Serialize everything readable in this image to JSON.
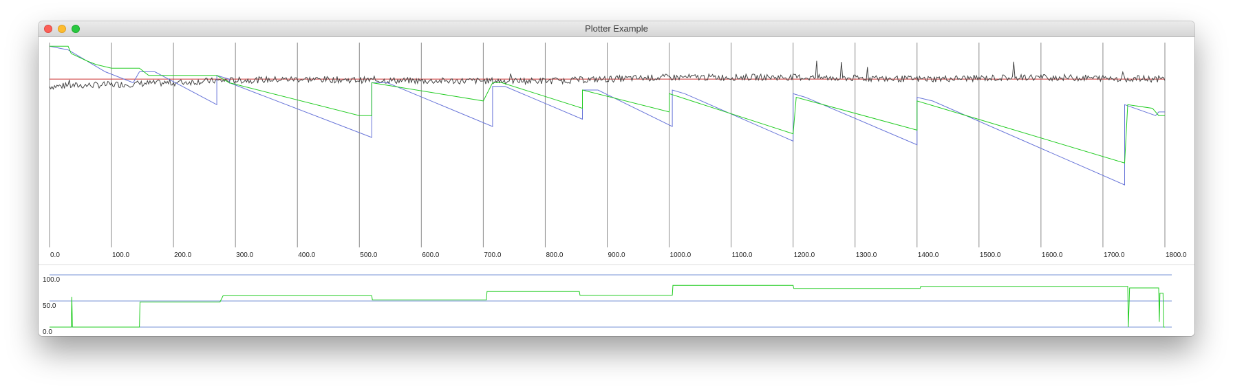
{
  "window": {
    "title": "Plotter Example",
    "buttons": [
      "close",
      "minimize",
      "zoom"
    ]
  },
  "colors": {
    "grid": "#8a8a8a",
    "red": "#cc3333",
    "gray": "#444444",
    "blue": "#6673d8",
    "green": "#22cc22",
    "lower_blue": "#5577cc"
  },
  "chart_data": [
    {
      "type": "line",
      "title": "",
      "xlabel": "",
      "ylabel": "",
      "xlim": [
        0,
        1800
      ],
      "ylim": [
        -45,
        10
      ],
      "x_ticks": [
        "0.0",
        "100.0",
        "200.0",
        "300.0",
        "400.0",
        "500.0",
        "600.0",
        "700.0",
        "800.0",
        "900.0",
        "1000.0",
        "1100.0",
        "1200.0",
        "1300.0",
        "1400.0",
        "1500.0",
        "1600.0",
        "1700.0",
        "1800.0"
      ],
      "grid": "vertical",
      "series": [
        {
          "color": "#cc3333",
          "points": [
            [
              0,
              0
            ],
            [
              1800,
              0
            ]
          ]
        },
        {
          "color": "#444444",
          "noise": true,
          "points": [
            [
              0,
              -2
            ],
            [
              100,
              -1.5
            ],
            [
              200,
              -1
            ],
            [
              260,
              -0.5
            ],
            [
              400,
              0
            ],
            [
              600,
              -0.5
            ],
            [
              800,
              -0.5
            ],
            [
              1000,
              0.5
            ],
            [
              1200,
              0.5
            ],
            [
              1400,
              0
            ],
            [
              1600,
              0.5
            ],
            [
              1800,
              0
            ]
          ]
        },
        {
          "color": "#6673d8",
          "points": [
            [
              0,
              9
            ],
            [
              30,
              8
            ],
            [
              90,
              2
            ],
            [
              135,
              -1
            ],
            [
              145,
              2
            ],
            [
              170,
              2
            ],
            [
              270,
              -7
            ],
            [
              270,
              1
            ],
            [
              290,
              0
            ],
            [
              290,
              -1
            ],
            [
              520,
              -16
            ],
            [
              520,
              -1
            ],
            [
              545,
              -1
            ],
            [
              715,
              -13
            ],
            [
              715,
              -2
            ],
            [
              735,
              -2
            ],
            [
              860,
              -11
            ],
            [
              860,
              -3
            ],
            [
              885,
              -3
            ],
            [
              1005,
              -13
            ],
            [
              1005,
              -3
            ],
            [
              1025,
              -4
            ],
            [
              1200,
              -17
            ],
            [
              1200,
              -4
            ],
            [
              1220,
              -5
            ],
            [
              1400,
              -18
            ],
            [
              1400,
              -5
            ],
            [
              1425,
              -6
            ],
            [
              1735,
              -29
            ],
            [
              1735,
              -7
            ],
            [
              1785,
              -10
            ],
            [
              1790,
              -9
            ],
            [
              1800,
              -9
            ]
          ]
        },
        {
          "color": "#22cc22",
          "points": [
            [
              0,
              9
            ],
            [
              30,
              9
            ],
            [
              35,
              7
            ],
            [
              60,
              5
            ],
            [
              75,
              4
            ],
            [
              100,
              3
            ],
            [
              145,
              3
            ],
            [
              160,
              1
            ],
            [
              270,
              1
            ],
            [
              290,
              -1
            ],
            [
              500,
              -10
            ],
            [
              520,
              -10
            ],
            [
              520,
              -1
            ],
            [
              700,
              -6
            ],
            [
              715,
              -1
            ],
            [
              730,
              -1
            ],
            [
              860,
              -8
            ],
            [
              860,
              -3
            ],
            [
              1000,
              -9
            ],
            [
              1000,
              -4
            ],
            [
              1200,
              -15
            ],
            [
              1205,
              -5
            ],
            [
              1400,
              -14
            ],
            [
              1400,
              -6
            ],
            [
              1440,
              -8
            ],
            [
              1735,
              -23
            ],
            [
              1740,
              -7
            ],
            [
              1780,
              -8
            ],
            [
              1790,
              -10
            ],
            [
              1800,
              -10
            ]
          ]
        }
      ]
    },
    {
      "type": "line",
      "title": "",
      "xlim": [
        0,
        1800
      ],
      "ylim": [
        0,
        100
      ],
      "y_ticks": [
        "100.0",
        "50.0",
        "0.0"
      ],
      "series": [
        {
          "color": "#5577cc",
          "reference_lines": [
            0,
            50,
            100
          ]
        },
        {
          "color": "#22cc22",
          "points": [
            [
              0,
              0
            ],
            [
              35,
              0
            ],
            [
              36,
              58
            ],
            [
              37,
              0
            ],
            [
              145,
              0
            ],
            [
              146,
              48
            ],
            [
              275,
              48
            ],
            [
              280,
              60
            ],
            [
              520,
              60
            ],
            [
              521,
              52
            ],
            [
              705,
              52
            ],
            [
              706,
              68
            ],
            [
              855,
              68
            ],
            [
              856,
              61
            ],
            [
              1005,
              61
            ],
            [
              1006,
              80
            ],
            [
              1200,
              80
            ],
            [
              1201,
              74
            ],
            [
              1405,
              74
            ],
            [
              1406,
              78
            ],
            [
              1740,
              78
            ],
            [
              1741,
              0
            ],
            [
              1743,
              75
            ],
            [
              1790,
              75
            ],
            [
              1791,
              10
            ],
            [
              1792,
              65
            ],
            [
              1797,
              65
            ],
            [
              1798,
              0
            ],
            [
              1800,
              0
            ]
          ]
        }
      ]
    }
  ]
}
